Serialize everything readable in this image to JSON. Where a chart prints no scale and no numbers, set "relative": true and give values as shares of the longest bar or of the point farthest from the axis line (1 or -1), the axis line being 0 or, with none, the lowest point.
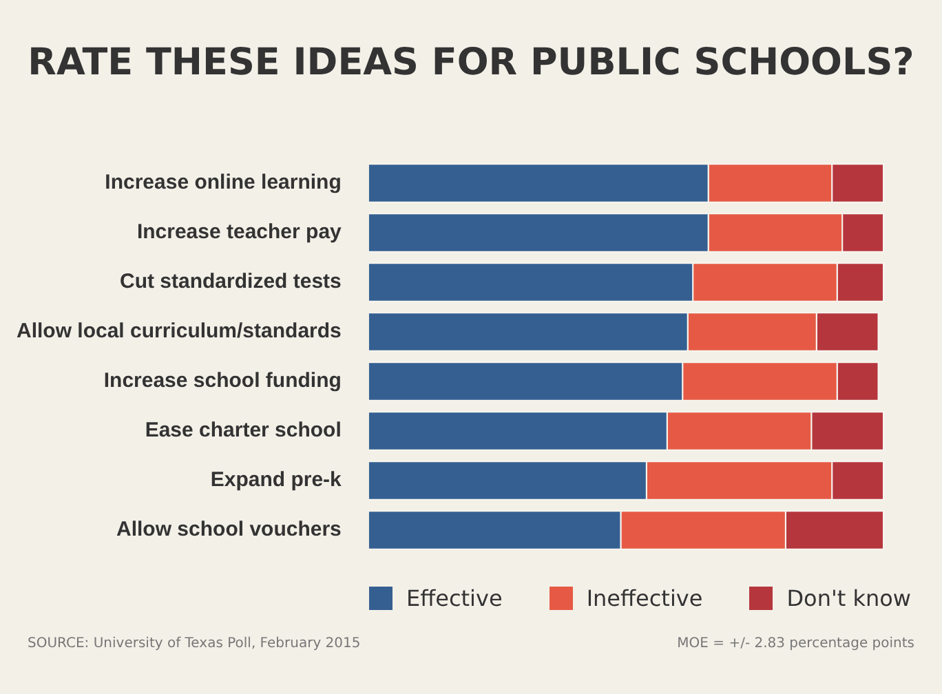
{
  "chart_data": {
    "type": "bar",
    "orientation": "horizontal",
    "stacked": true,
    "relative": true,
    "title": "RATE THESE IDEAS FOR PUBLIC SCHOOLS?",
    "categories": [
      "Increase online learning",
      "Increase teacher pay",
      "Cut standardized tests",
      "Allow local curriculum/standards",
      "Increase school funding",
      "Ease charter school",
      "Expand pre-k",
      "Allow school vouchers"
    ],
    "series": [
      {
        "name": "Effective",
        "color": "#355f91",
        "values": [
          0.66,
          0.66,
          0.63,
          0.62,
          0.61,
          0.58,
          0.54,
          0.49
        ]
      },
      {
        "name": "Ineffective",
        "color": "#e65a45",
        "values": [
          0.24,
          0.26,
          0.28,
          0.25,
          0.3,
          0.28,
          0.36,
          0.32
        ]
      },
      {
        "name": "Don't know",
        "color": "#b6363d",
        "values": [
          0.1,
          0.08,
          0.09,
          0.12,
          0.08,
          0.14,
          0.1,
          0.19
        ]
      }
    ],
    "legend": "bottom",
    "annotations": [
      "SOURCE: University of Texas Poll, February 2015",
      "MOE = +/- 2.83 percentage points"
    ]
  }
}
